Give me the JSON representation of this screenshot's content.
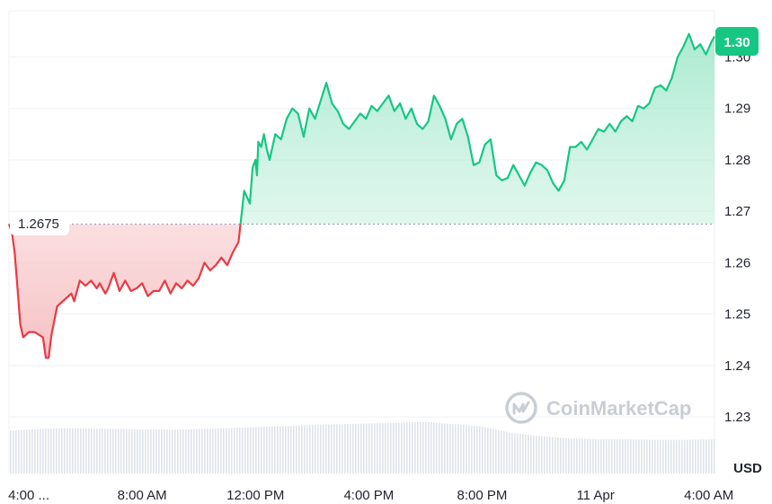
{
  "chart_data": {
    "type": "area",
    "baseline_value": 1.2675,
    "baseline_label": "1.2675",
    "current_value": 1.3,
    "current_label": "1.30",
    "unit_label": "USD",
    "watermark": "CoinMarketCap",
    "ylim": [
      1.219,
      1.309
    ],
    "xlim": [
      3.3,
      28.2
    ],
    "y_ticks": [
      "1.23",
      "1.24",
      "1.25",
      "1.26",
      "1.27",
      "1.28",
      "1.29",
      "1.30"
    ],
    "y_tick_values": [
      1.23,
      1.24,
      1.25,
      1.26,
      1.27,
      1.28,
      1.29,
      1.3
    ],
    "x_ticks": [
      "4:00 ...",
      "8:00 AM",
      "12:00 PM",
      "4:00 PM",
      "8:00 PM",
      "11 Apr",
      "4:00 AM"
    ],
    "x_tick_values": [
      4,
      8,
      12,
      16,
      20,
      24,
      28
    ],
    "series": [
      {
        "x": [
          3.3,
          3.4,
          3.5,
          3.6,
          3.7,
          3.8,
          4.0,
          4.2,
          4.5,
          4.6,
          4.7,
          4.8,
          5.0,
          5.2,
          5.4,
          5.5,
          5.6,
          5.8,
          6.0,
          6.2,
          6.4,
          6.5,
          6.7,
          6.8,
          7.0,
          7.2,
          7.4,
          7.6,
          7.8,
          8.0,
          8.2,
          8.4,
          8.6,
          8.8,
          9.0,
          9.2,
          9.4,
          9.6,
          9.8,
          10.0,
          10.2,
          10.4,
          10.6,
          10.8,
          11.0,
          11.2,
          11.4,
          11.6,
          11.8,
          11.9,
          12.0,
          12.05,
          12.1,
          12.2,
          12.3,
          12.4,
          12.5,
          12.7,
          12.9,
          13.1,
          13.3,
          13.5,
          13.7,
          13.9,
          14.1,
          14.3,
          14.5,
          14.7,
          14.9,
          15.1,
          15.3,
          15.5,
          15.7,
          15.9,
          16.1,
          16.3,
          16.5,
          16.7,
          16.9,
          17.1,
          17.3,
          17.5,
          17.7,
          17.9,
          18.1,
          18.3,
          18.5,
          18.7,
          18.9,
          19.1,
          19.3,
          19.5,
          19.7,
          19.9,
          20.1,
          20.3,
          20.5,
          20.7,
          20.9,
          21.1,
          21.3,
          21.5,
          21.7,
          21.9,
          22.1,
          22.3,
          22.5,
          22.7,
          22.9,
          23.1,
          23.3,
          23.5,
          23.7,
          23.9,
          24.1,
          24.3,
          24.5,
          24.7,
          24.9,
          25.1,
          25.3,
          25.5,
          25.7,
          25.9,
          26.1,
          26.3,
          26.5,
          26.7,
          26.9,
          27.1,
          27.3,
          27.5,
          27.7,
          27.9,
          28.1,
          28.2
        ],
        "y": [
          1.2675,
          1.266,
          1.262,
          1.255,
          1.248,
          1.2455,
          1.2465,
          1.2465,
          1.2455,
          1.2415,
          1.2415,
          1.246,
          1.2515,
          1.2525,
          1.2535,
          1.254,
          1.2525,
          1.2565,
          1.2555,
          1.2565,
          1.255,
          1.256,
          1.254,
          1.255,
          1.258,
          1.2545,
          1.2565,
          1.2545,
          1.255,
          1.256,
          1.2535,
          1.2545,
          1.2545,
          1.2565,
          1.254,
          1.256,
          1.255,
          1.2565,
          1.2555,
          1.257,
          1.26,
          1.2585,
          1.2595,
          1.261,
          1.2595,
          1.262,
          1.264,
          1.274,
          1.2715,
          1.2785,
          1.28,
          1.277,
          1.2835,
          1.2825,
          1.285,
          1.282,
          1.28,
          1.285,
          1.284,
          1.288,
          1.29,
          1.289,
          1.2845,
          1.29,
          1.288,
          1.2915,
          1.295,
          1.291,
          1.2895,
          1.287,
          1.286,
          1.2875,
          1.289,
          1.288,
          1.2905,
          1.2895,
          1.291,
          1.2925,
          1.2895,
          1.291,
          1.288,
          1.29,
          1.287,
          1.286,
          1.2875,
          1.2925,
          1.2905,
          1.288,
          1.284,
          1.287,
          1.288,
          1.2845,
          1.279,
          1.2795,
          1.283,
          1.284,
          1.277,
          1.276,
          1.2765,
          1.279,
          1.277,
          1.275,
          1.2775,
          1.2795,
          1.279,
          1.278,
          1.2755,
          1.274,
          1.276,
          1.2825,
          1.2825,
          1.2835,
          1.282,
          1.284,
          1.286,
          1.2855,
          1.287,
          1.2855,
          1.2875,
          1.2885,
          1.2875,
          1.2905,
          1.29,
          1.291,
          1.294,
          1.2945,
          1.2935,
          1.296,
          1.3,
          1.302,
          1.3045,
          1.3015,
          1.3025,
          1.3005,
          1.303,
          1.304
        ]
      }
    ],
    "volume": {
      "x": [
        3.3,
        5.0,
        7.0,
        9.0,
        11.0,
        12.5,
        14.0,
        16.0,
        18.0,
        20.0,
        21.0,
        22.0,
        23.0,
        24.0,
        25.0,
        26.0,
        27.0,
        28.2
      ],
      "v": [
        0.55,
        0.58,
        0.57,
        0.56,
        0.58,
        0.6,
        0.62,
        0.64,
        0.66,
        0.6,
        0.52,
        0.48,
        0.45,
        0.44,
        0.44,
        0.43,
        0.43,
        0.44
      ]
    },
    "colors": {
      "up": "#16c784",
      "down": "#ea3943",
      "up_fill_top": "#8fe3c1",
      "down_fill_top": "#f5b9bc",
      "grid": "#eff2f5",
      "baseline": "#a1a7bb",
      "volume": "#dfe3ea",
      "watermark": "#c9cdd4"
    }
  }
}
